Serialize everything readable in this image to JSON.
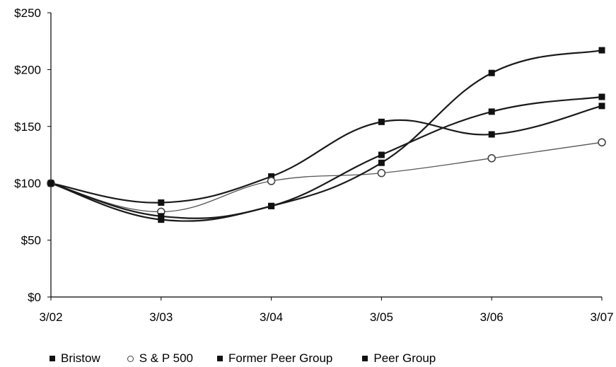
{
  "chart_data": {
    "type": "line",
    "categories": [
      "3/02",
      "3/03",
      "3/04",
      "3/05",
      "3/06",
      "3/07"
    ],
    "y_ticks": [
      "$0",
      "$50",
      "$100",
      "$150",
      "$200",
      "$250"
    ],
    "ylim": [
      0,
      250
    ],
    "grid": false,
    "legend_position": "bottom",
    "series": [
      {
        "name": "Bristow",
        "values": [
          100,
          83,
          106,
          154,
          143,
          168
        ],
        "marker": "filled-square",
        "color": "#1a1a1a"
      },
      {
        "name": "S & P 500",
        "values": [
          100,
          75,
          102,
          109,
          122,
          136
        ],
        "marker": "open-circle",
        "color": "#555555"
      },
      {
        "name": "Former Peer Group",
        "values": [
          100,
          68,
          80,
          118,
          197,
          217
        ],
        "marker": "filled-square",
        "color": "#1a1a1a"
      },
      {
        "name": "Peer Group",
        "values": [
          100,
          71,
          80,
          125,
          163,
          176
        ],
        "marker": "filled-square",
        "color": "#1a1a1a"
      }
    ]
  },
  "legend": {
    "items": [
      {
        "label": "Bristow"
      },
      {
        "label": "S & P 500"
      },
      {
        "label": "Former Peer Group"
      },
      {
        "label": "Peer Group"
      }
    ]
  }
}
